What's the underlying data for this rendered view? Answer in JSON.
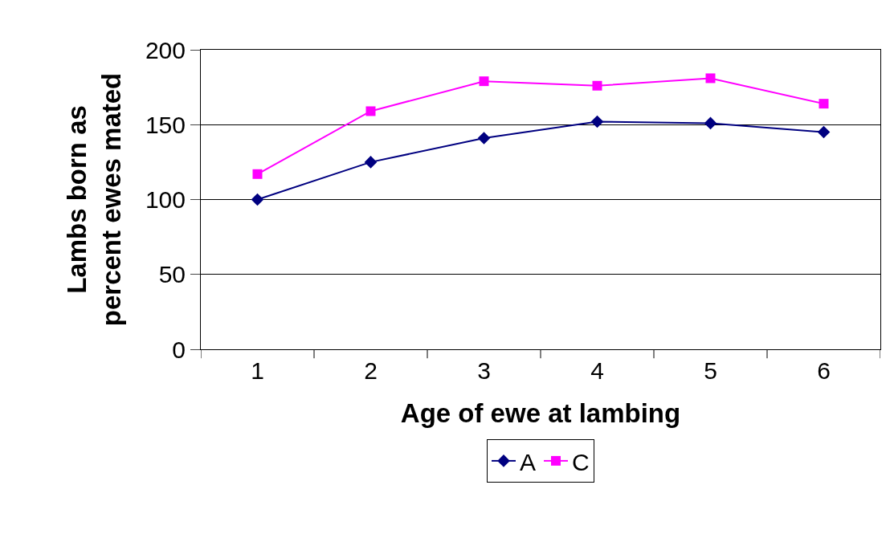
{
  "chart_data": {
    "type": "line",
    "xlabel": "Age of ewe at lambing",
    "ylabel": "Lambs born as percent ewes mated",
    "categories": [
      "1",
      "2",
      "3",
      "4",
      "5",
      "6"
    ],
    "series": [
      {
        "name": "A",
        "color": "#000080",
        "marker": "diamond",
        "values": [
          100,
          125,
          141,
          152,
          151,
          145
        ]
      },
      {
        "name": "C",
        "color": "#ff00ff",
        "marker": "square",
        "values": [
          117,
          159,
          179,
          176,
          181,
          164
        ]
      }
    ],
    "ylim": [
      0,
      200
    ],
    "yticks": [
      0,
      50,
      100,
      150,
      200
    ],
    "grid": "y",
    "legend": "bottom",
    "line_style": "solid"
  }
}
